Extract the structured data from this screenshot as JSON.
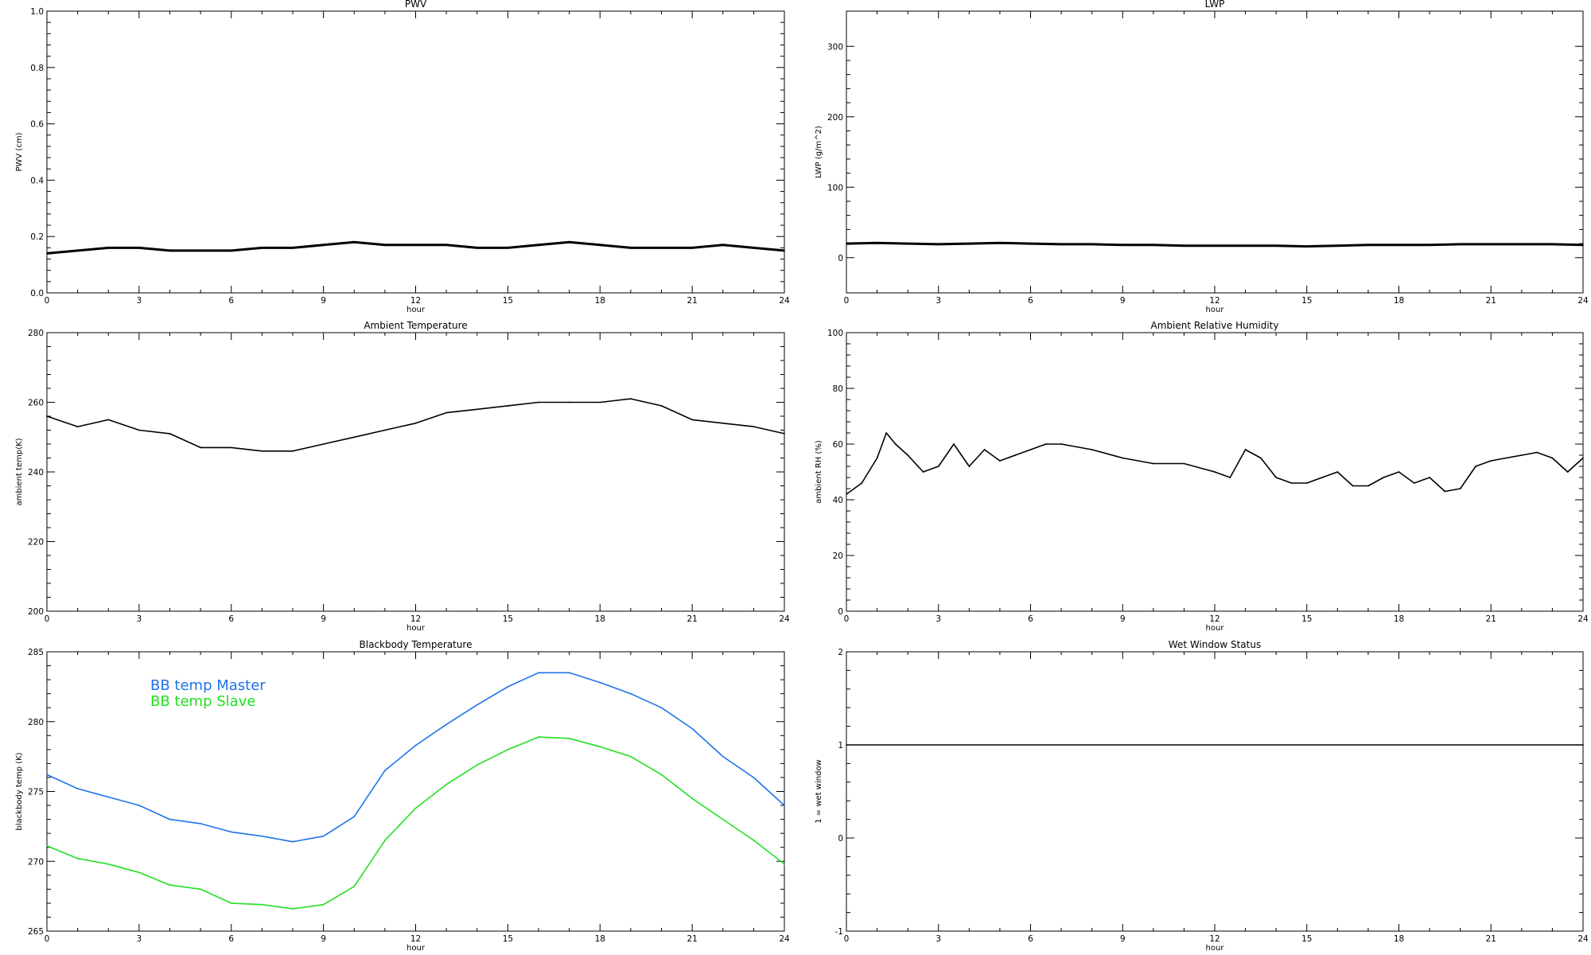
{
  "chart_data": [
    {
      "id": "pwv",
      "type": "line",
      "title": "PWV",
      "xlabel": "hour",
      "ylabel": "PWV (cm)",
      "xlim": [
        0,
        24
      ],
      "ylim": [
        0,
        1
      ],
      "xticks": [
        "0",
        "3",
        "6",
        "9",
        "12",
        "15",
        "18",
        "21",
        "24"
      ],
      "yticks": [
        "0.0",
        "0.2",
        "0.4",
        "0.6",
        "0.8",
        "1.0"
      ],
      "series": [
        {
          "color": "#000000",
          "x": [
            0,
            1,
            2,
            3,
            4,
            5,
            6,
            7,
            8,
            9,
            10,
            11,
            12,
            13,
            14,
            15,
            16,
            17,
            18,
            19,
            20,
            21,
            22,
            23,
            24
          ],
          "y": [
            0.14,
            0.15,
            0.16,
            0.16,
            0.15,
            0.15,
            0.15,
            0.16,
            0.16,
            0.17,
            0.18,
            0.17,
            0.17,
            0.17,
            0.16,
            0.16,
            0.17,
            0.18,
            0.17,
            0.16,
            0.16,
            0.16,
            0.17,
            0.16,
            0.15
          ]
        }
      ]
    },
    {
      "id": "lwp",
      "type": "line",
      "title": "LWP",
      "xlabel": "hour",
      "ylabel": "LWP (g/m^2)",
      "xlim": [
        0,
        24
      ],
      "ylim": [
        -50,
        350
      ],
      "xticks": [
        "0",
        "3",
        "6",
        "9",
        "12",
        "15",
        "18",
        "21",
        "24"
      ],
      "yticks": [
        "0",
        "100",
        "200",
        "300"
      ],
      "series": [
        {
          "color": "#000000",
          "x": [
            0,
            1,
            2,
            3,
            4,
            5,
            6,
            7,
            8,
            9,
            10,
            11,
            12,
            13,
            14,
            15,
            16,
            17,
            18,
            19,
            20,
            21,
            22,
            23,
            24
          ],
          "y": [
            20,
            21,
            20,
            19,
            20,
            21,
            20,
            19,
            19,
            18,
            18,
            17,
            17,
            17,
            17,
            16,
            17,
            18,
            18,
            18,
            19,
            19,
            19,
            19,
            18
          ]
        }
      ]
    },
    {
      "id": "ambient-temperature",
      "type": "line",
      "title": "Ambient Temperature",
      "xlabel": "hour",
      "ylabel": "ambient temp(K)",
      "xlim": [
        0,
        24
      ],
      "ylim": [
        200,
        280
      ],
      "xticks": [
        "0",
        "3",
        "6",
        "9",
        "12",
        "15",
        "18",
        "21",
        "24"
      ],
      "yticks": [
        "200",
        "220",
        "240",
        "260",
        "280"
      ],
      "series": [
        {
          "color": "#000000",
          "x": [
            0,
            1,
            2,
            3,
            4,
            5,
            6,
            7,
            8,
            9,
            10,
            11,
            12,
            13,
            14,
            15,
            16,
            17,
            18,
            19,
            20,
            21,
            22,
            23,
            24
          ],
          "y": [
            256,
            253,
            255,
            252,
            251,
            247,
            247,
            246,
            246,
            248,
            250,
            252,
            254,
            257,
            258,
            259,
            260,
            260,
            260,
            261,
            259,
            255,
            254,
            253,
            251
          ]
        }
      ]
    },
    {
      "id": "ambient-relative-humidity",
      "type": "line",
      "title": "Ambient Relative Humidity",
      "xlabel": "hour",
      "ylabel": "ambient RH (%)",
      "xlim": [
        0,
        24
      ],
      "ylim": [
        0,
        100
      ],
      "xticks": [
        "0",
        "3",
        "6",
        "9",
        "12",
        "15",
        "18",
        "21",
        "24"
      ],
      "yticks": [
        "0",
        "20",
        "40",
        "60",
        "80",
        "100"
      ],
      "series": [
        {
          "color": "#000000",
          "x": [
            0,
            0.5,
            1,
            1.3,
            1.6,
            2,
            2.5,
            3,
            3.5,
            4,
            4.5,
            5,
            5.5,
            6,
            6.5,
            7,
            8,
            9,
            10,
            11,
            12,
            12.5,
            13,
            13.5,
            14,
            14.5,
            15,
            15.5,
            16,
            16.5,
            17,
            17.5,
            18,
            18.5,
            19,
            19.5,
            20,
            20.5,
            21,
            22,
            22.5,
            23,
            23.5,
            24
          ],
          "y": [
            42,
            46,
            55,
            64,
            60,
            56,
            50,
            52,
            60,
            52,
            58,
            54,
            56,
            58,
            60,
            60,
            58,
            55,
            53,
            53,
            50,
            48,
            58,
            55,
            48,
            46,
            46,
            48,
            50,
            45,
            45,
            48,
            50,
            46,
            48,
            43,
            44,
            52,
            54,
            56,
            57,
            55,
            50,
            55
          ]
        }
      ]
    },
    {
      "id": "blackbody-temperature",
      "type": "line",
      "title": "Blackbody Temperature",
      "xlabel": "hour",
      "ylabel": "blackbody temp (K)",
      "xlim": [
        0,
        24
      ],
      "ylim": [
        265,
        285
      ],
      "xticks": [
        "0",
        "3",
        "6",
        "9",
        "12",
        "15",
        "18",
        "21",
        "24"
      ],
      "yticks": [
        "265",
        "270",
        "275",
        "280",
        "285"
      ],
      "legend": "upper-left",
      "series": [
        {
          "name": "BB temp Master",
          "color": "#1e73e8",
          "x": [
            0,
            1,
            2,
            3,
            4,
            5,
            6,
            7,
            8,
            9,
            10,
            11,
            12,
            13,
            14,
            15,
            16,
            17,
            18,
            19,
            20,
            21,
            22,
            23,
            24
          ],
          "y": [
            276.2,
            275.2,
            274.6,
            274.0,
            273.0,
            272.7,
            272.1,
            271.8,
            271.4,
            271.8,
            273.2,
            276.5,
            278.3,
            279.8,
            281.2,
            282.5,
            283.5,
            283.5,
            282.8,
            282.0,
            281.0,
            279.5,
            277.5,
            276.0,
            274.0
          ]
        },
        {
          "name": "BB temp Slave",
          "color": "#22e022",
          "x": [
            0,
            1,
            2,
            3,
            4,
            5,
            6,
            7,
            8,
            9,
            10,
            11,
            12,
            13,
            14,
            15,
            16,
            17,
            18,
            19,
            20,
            21,
            22,
            23,
            24
          ],
          "y": [
            271.1,
            270.2,
            269.8,
            269.2,
            268.3,
            268.0,
            267.0,
            266.9,
            266.6,
            266.9,
            268.2,
            271.5,
            273.8,
            275.5,
            276.9,
            278.0,
            278.9,
            278.8,
            278.2,
            277.5,
            276.2,
            274.5,
            273.0,
            271.5,
            269.8
          ]
        }
      ]
    },
    {
      "id": "wet-window-status",
      "type": "line",
      "title": "Wet Window Status",
      "xlabel": "hour",
      "ylabel": "1 = wet window",
      "xlim": [
        0,
        24
      ],
      "ylim": [
        -1,
        2
      ],
      "xticks": [
        "0",
        "3",
        "6",
        "9",
        "12",
        "15",
        "18",
        "21",
        "24"
      ],
      "yticks": [
        "-1",
        "0",
        "1",
        "2"
      ],
      "series": [
        {
          "color": "#000000",
          "x": [
            0,
            24
          ],
          "y": [
            1,
            1
          ]
        }
      ]
    }
  ]
}
